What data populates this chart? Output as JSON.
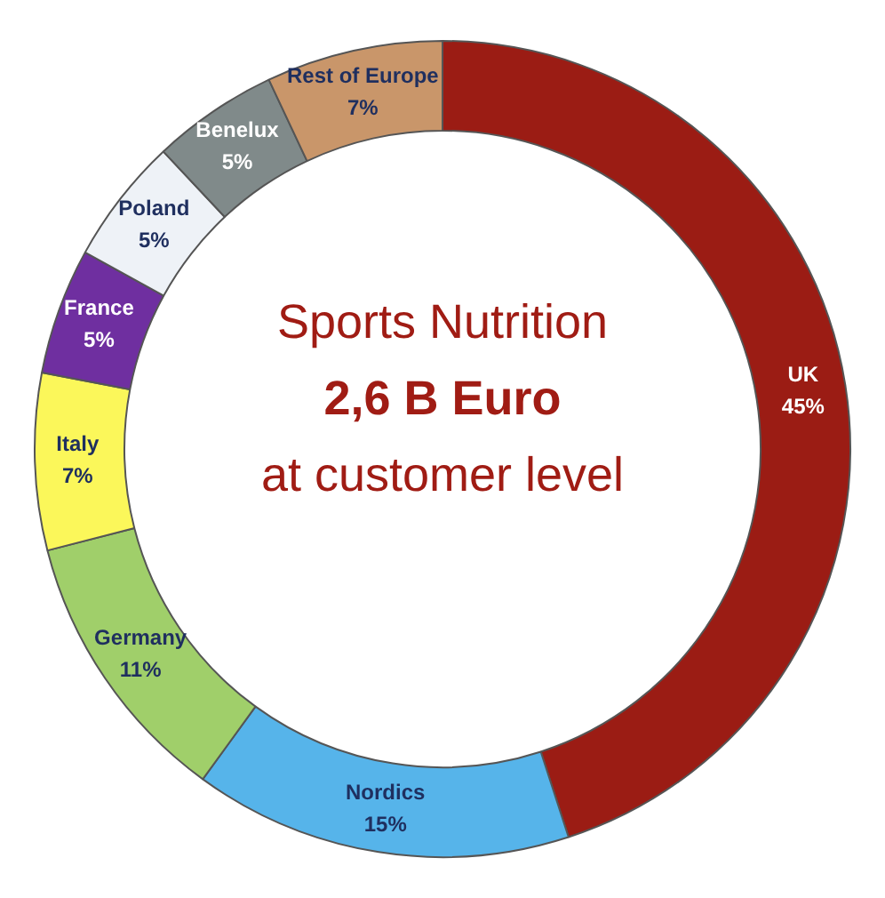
{
  "chart_data": {
    "type": "donut",
    "title": "Sports Nutrition",
    "subtitle": "2,6 B Euro",
    "annotations": [
      "at customer level"
    ],
    "categories": [
      "UK",
      "Nordics",
      "Germany",
      "Italy",
      "France",
      "Poland",
      "Benelux",
      "Rest of Europe"
    ],
    "values": [
      45,
      15,
      11,
      7,
      5,
      5,
      5,
      7
    ],
    "colors": [
      "#9b1c14",
      "#56b4ea",
      "#a0cf6a",
      "#fbf75a",
      "#6f2fa0",
      "#eef2f7",
      "#808a8a",
      "#c9966a"
    ],
    "value_labels": [
      "45%",
      "15%",
      "11%",
      "7%",
      "5%",
      "5%",
      "5%",
      "7%"
    ],
    "legend": false
  }
}
